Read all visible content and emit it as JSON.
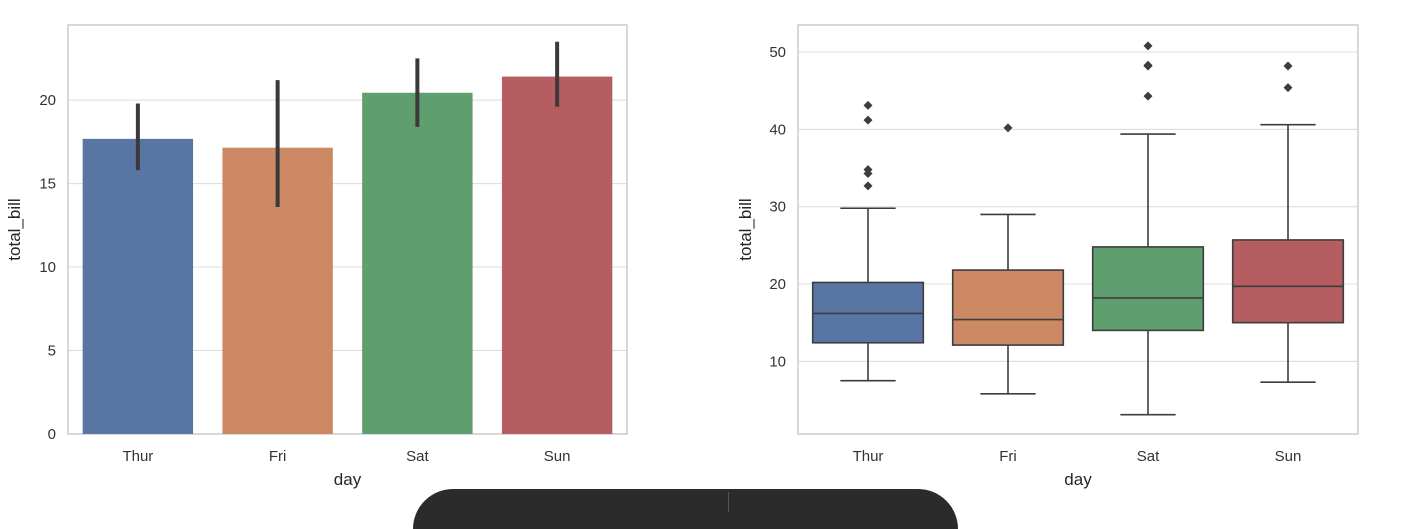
{
  "chart_data": [
    {
      "type": "bar",
      "categories": [
        "Thur",
        "Fri",
        "Sat",
        "Sun"
      ],
      "values": [
        17.68,
        17.15,
        20.44,
        21.41
      ],
      "ci_low": [
        15.8,
        13.6,
        18.4,
        19.6
      ],
      "ci_high": [
        19.8,
        21.2,
        22.5,
        23.5
      ],
      "colors": [
        "#5875a4",
        "#cc8963",
        "#5f9e6e",
        "#b55d60"
      ],
      "xlabel": "day",
      "ylabel": "total_bill",
      "ylim": [
        0,
        24.5
      ],
      "yticks": [
        0,
        5,
        10,
        15,
        20
      ],
      "grid": true
    },
    {
      "type": "box",
      "categories": [
        "Thur",
        "Fri",
        "Sat",
        "Sun"
      ],
      "boxes": [
        {
          "whisker_low": 7.5,
          "q1": 12.4,
          "median": 16.2,
          "q3": 20.2,
          "whisker_high": 29.8,
          "outliers": [
            32.7,
            34.3,
            34.8,
            41.2,
            43.1
          ]
        },
        {
          "whisker_low": 5.8,
          "q1": 12.1,
          "median": 15.4,
          "q3": 21.8,
          "whisker_high": 29.0,
          "outliers": [
            40.2
          ]
        },
        {
          "whisker_low": 3.1,
          "q1": 14.0,
          "median": 18.2,
          "q3": 24.8,
          "whisker_high": 39.4,
          "outliers": [
            44.3,
            48.2,
            48.3,
            50.8
          ]
        },
        {
          "whisker_low": 7.3,
          "q1": 15.0,
          "median": 19.7,
          "q3": 25.7,
          "whisker_high": 40.6,
          "outliers": [
            45.4,
            48.2
          ]
        }
      ],
      "colors": [
        "#5875a4",
        "#cc8963",
        "#5f9e6e",
        "#b55d60"
      ],
      "xlabel": "day",
      "ylabel": "total_bill",
      "ylim": [
        0.6,
        53.5
      ],
      "yticks": [
        10,
        20,
        30,
        40,
        50
      ],
      "grid": true
    }
  ]
}
